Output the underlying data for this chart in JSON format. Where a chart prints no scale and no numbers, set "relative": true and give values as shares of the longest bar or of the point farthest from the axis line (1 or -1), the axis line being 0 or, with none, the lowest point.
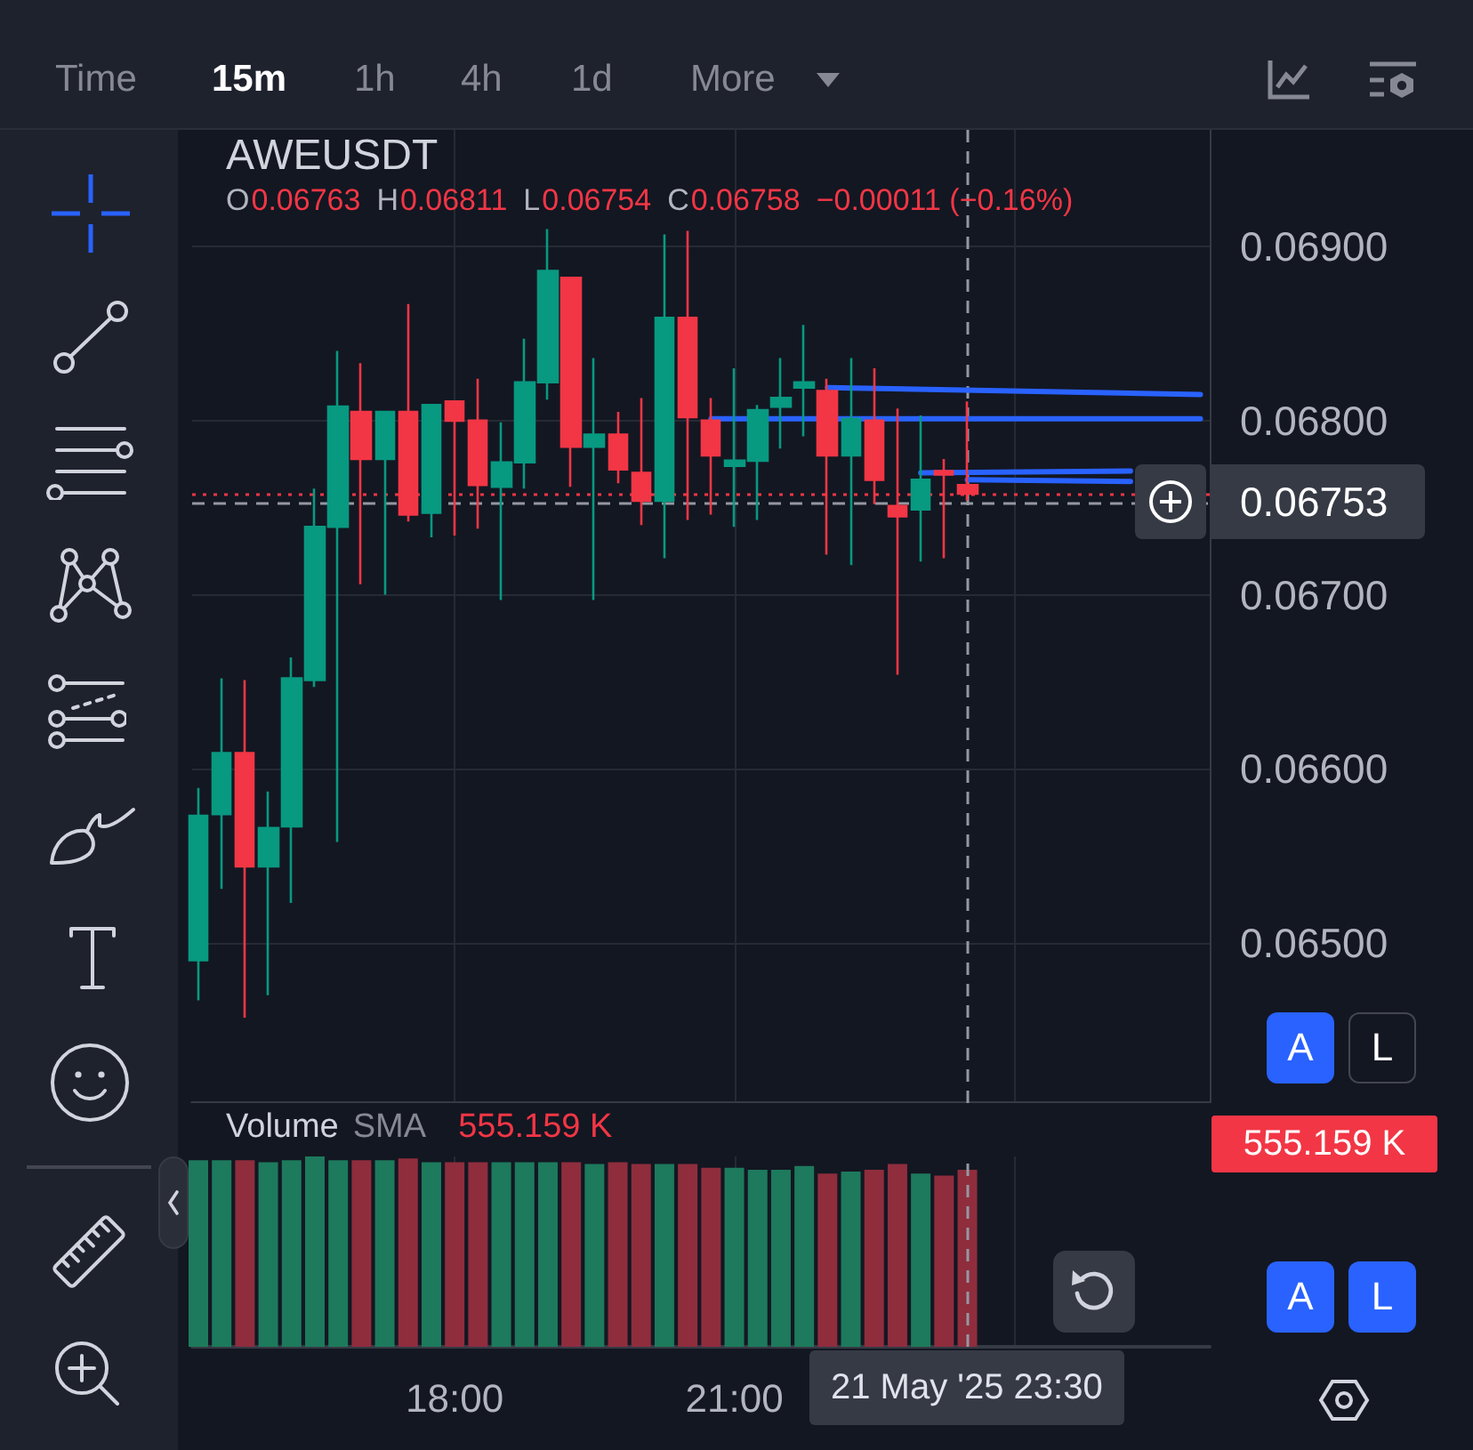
{
  "chart_data": [
    {
      "type": "candlestick",
      "title": "AWEUSDT",
      "x": [
        "2025-05-21T15:15",
        "2025-05-21T15:30",
        "2025-05-21T15:45",
        "2025-05-21T16:00",
        "2025-05-21T16:15",
        "2025-05-21T16:30",
        "2025-05-21T16:45",
        "2025-05-21T17:00",
        "2025-05-21T17:15",
        "2025-05-21T17:30",
        "2025-05-21T17:45",
        "2025-05-21T18:00",
        "2025-05-21T18:15",
        "2025-05-21T18:30",
        "2025-05-21T18:45",
        "2025-05-21T19:00",
        "2025-05-21T19:15",
        "2025-05-21T19:30",
        "2025-05-21T19:45",
        "2025-05-21T20:00",
        "2025-05-21T20:15",
        "2025-05-21T20:30",
        "2025-05-21T20:45",
        "2025-05-21T21:00",
        "2025-05-21T21:15",
        "2025-05-21T21:30",
        "2025-05-21T21:45",
        "2025-05-21T22:00",
        "2025-05-21T22:15",
        "2025-05-21T22:30",
        "2025-05-21T22:45",
        "2025-05-21T23:00",
        "2025-05-21T23:15",
        "2025-05-21T23:30"
      ],
      "ohlc": [
        [
          0.0649,
          0.06589,
          0.06467,
          0.06573
        ],
        [
          0.06574,
          0.06652,
          0.06531,
          0.06609
        ],
        [
          0.06609,
          0.06651,
          0.06457,
          0.06544
        ],
        [
          0.06544,
          0.06587,
          0.0647,
          0.06566
        ],
        [
          0.06567,
          0.06664,
          0.06523,
          0.06652
        ],
        [
          0.06651,
          0.06761,
          0.06647,
          0.06739
        ],
        [
          0.06739,
          0.0684,
          0.06558,
          0.06808
        ],
        [
          0.06805,
          0.06833,
          0.06706,
          0.06778
        ],
        [
          0.06778,
          0.06805,
          0.067,
          0.06805
        ],
        [
          0.06805,
          0.06867,
          0.06742,
          0.06746
        ],
        [
          0.06747,
          0.06809,
          0.06733,
          0.06809
        ],
        [
          0.06811,
          0.06811,
          0.06734,
          0.068
        ],
        [
          0.068,
          0.06824,
          0.06738,
          0.06763
        ],
        [
          0.06762,
          0.06799,
          0.06697,
          0.06776
        ],
        [
          0.06776,
          0.06847,
          0.06761,
          0.06822
        ],
        [
          0.06822,
          0.0691,
          0.06812,
          0.06886
        ],
        [
          0.06882,
          0.06882,
          0.06762,
          0.06785
        ],
        [
          0.06785,
          0.06836,
          0.06697,
          0.06792
        ],
        [
          0.06792,
          0.06805,
          0.06764,
          0.06772
        ],
        [
          0.0677,
          0.06813,
          0.0674,
          0.06754
        ],
        [
          0.06754,
          0.06907,
          0.06721,
          0.06859
        ],
        [
          0.06859,
          0.06909,
          0.06743,
          0.06802
        ],
        [
          0.068,
          0.06813,
          0.06746,
          0.0678
        ],
        [
          0.06774,
          0.0683,
          0.06739,
          0.06777
        ],
        [
          0.06777,
          0.06809,
          0.06743,
          0.06806
        ],
        [
          0.06808,
          0.06836,
          0.06784,
          0.06813
        ],
        [
          0.06819,
          0.06855,
          0.06791,
          0.06822
        ],
        [
          0.06817,
          0.06824,
          0.06723,
          0.0678
        ],
        [
          0.0678,
          0.06836,
          0.06717,
          0.06801
        ],
        [
          0.068,
          0.0683,
          0.06752,
          0.06766
        ],
        [
          0.06751,
          0.06807,
          0.06654,
          0.06745
        ],
        [
          0.06749,
          0.06803,
          0.06719,
          0.06766
        ],
        [
          0.06771,
          0.06778,
          0.06721,
          0.06769
        ],
        [
          0.06763,
          0.06811,
          0.06754,
          0.06758
        ]
      ],
      "colors": [
        "#089981",
        "#089981",
        "#f23645",
        "#089981",
        "#089981",
        "#089981",
        "#089981",
        "#f23645",
        "#089981",
        "#f23645",
        "#089981",
        "#f23645",
        "#f23645",
        "#089981",
        "#089981",
        "#089981",
        "#f23645",
        "#089981",
        "#f23645",
        "#f23645",
        "#089981",
        "#f23645",
        "#f23645",
        "#089981",
        "#089981",
        "#089981",
        "#089981",
        "#f23645",
        "#089981",
        "#f23645",
        "#f23645",
        "#089981",
        "#f23645",
        "#f23645"
      ],
      "series": [
        {
          "type": "line",
          "color": "#2962ff",
          "x": [
            "2025-05-21T22:00",
            "2025-05-22T02:00"
          ],
          "values": [
            0.06819,
            0.06815
          ]
        },
        {
          "type": "line",
          "color": "#2962ff",
          "x": [
            "2025-05-21T20:45",
            "2025-05-22T02:00"
          ],
          "values": [
            0.06801,
            0.06801
          ]
        },
        {
          "type": "line",
          "color": "#2962ff",
          "x": [
            "2025-05-21T23:00",
            "2025-05-22T01:15"
          ],
          "values": [
            0.0677,
            0.06771
          ]
        },
        {
          "type": "line",
          "color": "#2962ff",
          "x": [
            "2025-05-21T23:30",
            "2025-05-22T01:15"
          ],
          "values": [
            0.06766,
            0.06765
          ]
        }
      ],
      "xlim": [
        "2025-05-21T15:11",
        "2025-05-22T02:06"
      ],
      "xticks": [
        {
          "value": "2025-05-21T18:00",
          "label": null
        },
        {
          "value": "2025-05-21T21:00",
          "label": null
        },
        {
          "value": "2025-05-22T00:00",
          "label": null
        }
      ],
      "ylim": [
        0.06408,
        0.06967
      ],
      "yticks": [
        {
          "value": 0.065,
          "label": "0.06500"
        },
        {
          "value": 0.066,
          "label": "0.06600"
        },
        {
          "value": 0.067,
          "label": "0.06700"
        },
        {
          "value": 0.068,
          "label": "0.06800"
        },
        {
          "value": 0.069,
          "label": "0.06900"
        }
      ],
      "ref_lines": [
        {
          "axis": "y",
          "value": 0.06758,
          "color": "#f23645",
          "line_style": "dotted"
        },
        {
          "axis": "y",
          "value": 0.06753,
          "label": "0.06753",
          "color": "#9598a1",
          "line_style": "dashed"
        },
        {
          "axis": "x",
          "value": "2025-05-21T23:30",
          "color": "#9598a1",
          "line_style": "dashed"
        }
      ],
      "annotations": [
        "Time",
        "15m",
        "1h",
        "4h",
        "1d",
        "More",
        "O",
        "0.06763",
        "H",
        "0.06811",
        "L",
        "0.06754",
        "C",
        "0.06758",
        "−0.00011 (−0.16%)",
        "A",
        "L"
      ],
      "tick_labels": "y",
      "grid": true
    },
    {
      "type": "bar",
      "title": "Volume",
      "relative": true,
      "x": [
        "2025-05-21T15:15",
        "2025-05-21T15:30",
        "2025-05-21T15:45",
        "2025-05-21T16:00",
        "2025-05-21T16:15",
        "2025-05-21T16:30",
        "2025-05-21T16:45",
        "2025-05-21T17:00",
        "2025-05-21T17:15",
        "2025-05-21T17:30",
        "2025-05-21T17:45",
        "2025-05-21T18:00",
        "2025-05-21T18:15",
        "2025-05-21T18:30",
        "2025-05-21T18:45",
        "2025-05-21T19:00",
        "2025-05-21T19:15",
        "2025-05-21T19:30",
        "2025-05-21T19:45",
        "2025-05-21T20:00",
        "2025-05-21T20:15",
        "2025-05-21T20:30",
        "2025-05-21T20:45",
        "2025-05-21T21:00",
        "2025-05-21T21:15",
        "2025-05-21T21:30",
        "2025-05-21T21:45",
        "2025-05-21T22:00",
        "2025-05-21T22:15",
        "2025-05-21T22:30",
        "2025-05-21T22:45",
        "2025-05-21T23:00",
        "2025-05-21T23:15",
        "2025-05-21T23:30"
      ],
      "values": [
        0.98,
        0.98,
        0.98,
        0.97,
        0.98,
        1,
        0.98,
        0.98,
        0.98,
        0.99,
        0.97,
        0.97,
        0.97,
        0.97,
        0.97,
        0.97,
        0.97,
        0.96,
        0.97,
        0.96,
        0.96,
        0.96,
        0.94,
        0.94,
        0.93,
        0.93,
        0.95,
        0.91,
        0.92,
        0.93,
        0.96,
        0.91,
        0.9,
        0.93
      ],
      "colors": [
        "#1d7a5c",
        "#1d7a5c",
        "#8f2d3d",
        "#1d7a5c",
        "#1d7a5c",
        "#1d7a5c",
        "#1d7a5c",
        "#8f2d3d",
        "#1d7a5c",
        "#8f2d3d",
        "#1d7a5c",
        "#8f2d3d",
        "#8f2d3d",
        "#1d7a5c",
        "#1d7a5c",
        "#1d7a5c",
        "#8f2d3d",
        "#1d7a5c",
        "#8f2d3d",
        "#8f2d3d",
        "#1d7a5c",
        "#8f2d3d",
        "#8f2d3d",
        "#1d7a5c",
        "#1d7a5c",
        "#1d7a5c",
        "#1d7a5c",
        "#8f2d3d",
        "#1d7a5c",
        "#8f2d3d",
        "#8f2d3d",
        "#1d7a5c",
        "#8f2d3d",
        "#8f2d3d"
      ],
      "xlim": [
        "2025-05-21T15:11",
        "2025-05-22T02:06"
      ],
      "xticks": [
        {
          "value": "2025-05-21T18:00",
          "label": "18:00"
        },
        {
          "value": "2025-05-21T21:00",
          "label": "21:00"
        },
        {
          "value": "2025-05-22T00:00",
          "label": null
        }
      ],
      "ref_lines": [
        {
          "axis": "x",
          "value": "2025-05-21T23:30",
          "label": "21 May '25 23:30",
          "color": "#9598a1",
          "line_style": "dashed"
        }
      ],
      "annotations": [
        "SMA",
        "555.159 K",
        "555.159 K",
        "A",
        "L"
      ],
      "grid": "x"
    }
  ]
}
